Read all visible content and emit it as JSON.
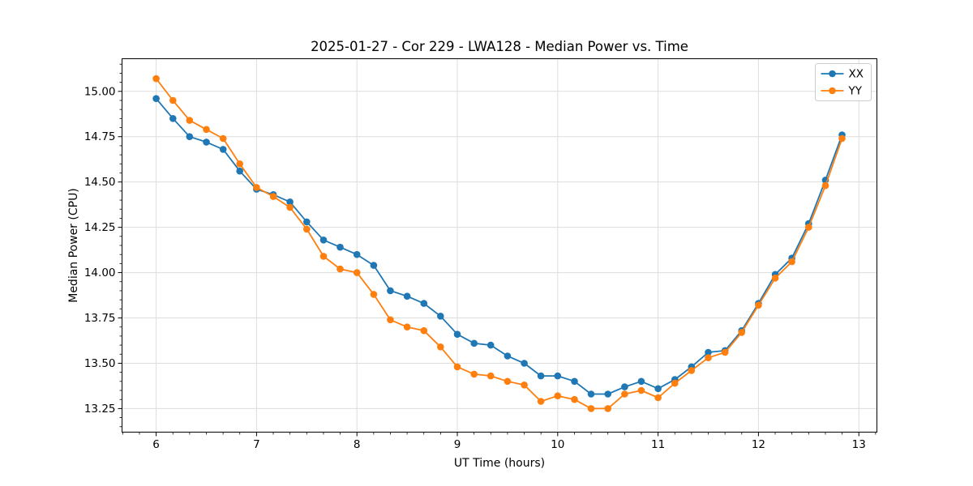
{
  "chart_data": {
    "type": "line",
    "title": "2025-01-27 - Cor 229 - LWA128 - Median Power vs. Time",
    "xlabel": "UT Time (hours)",
    "ylabel": "Median Power (CPU)",
    "xlim": [
      5.66,
      13.18
    ],
    "ylim": [
      13.12,
      15.18
    ],
    "x_major_ticks": [
      6,
      7,
      8,
      9,
      10,
      11,
      12,
      13
    ],
    "y_major_ticks": [
      13.25,
      13.5,
      13.75,
      14.0,
      14.25,
      14.5,
      14.75,
      15.0
    ],
    "x_minor_step": 0.166667,
    "y_minor_step": 0.05,
    "grid": "major",
    "grid_color": "#dddddd",
    "legend_position": "upper right",
    "x": [
      6.0,
      6.167,
      6.333,
      6.5,
      6.667,
      6.833,
      7.0,
      7.167,
      7.333,
      7.5,
      7.667,
      7.833,
      8.0,
      8.167,
      8.333,
      8.5,
      8.667,
      8.833,
      9.0,
      9.167,
      9.333,
      9.5,
      9.667,
      9.833,
      10.0,
      10.167,
      10.333,
      10.5,
      10.667,
      10.833,
      11.0,
      11.167,
      11.333,
      11.5,
      11.667,
      11.833,
      12.0,
      12.167,
      12.333,
      12.5,
      12.667,
      12.833
    ],
    "series": [
      {
        "name": "XX",
        "color": "#1f77b4",
        "values": [
          14.96,
          14.85,
          14.75,
          14.72,
          14.68,
          14.56,
          14.46,
          14.43,
          14.39,
          14.28,
          14.18,
          14.14,
          14.1,
          14.04,
          13.9,
          13.87,
          13.83,
          13.76,
          13.66,
          13.61,
          13.6,
          13.54,
          13.5,
          13.43,
          13.43,
          13.4,
          13.33,
          13.33,
          13.37,
          13.4,
          13.36,
          13.41,
          13.48,
          13.56,
          13.57,
          13.68,
          13.83,
          13.99,
          14.08,
          14.27,
          14.51,
          14.76
        ]
      },
      {
        "name": "YY",
        "color": "#ff7f0e",
        "values": [
          15.07,
          14.95,
          14.84,
          14.79,
          14.74,
          14.6,
          14.47,
          14.42,
          14.36,
          14.24,
          14.09,
          14.02,
          14.0,
          13.88,
          13.74,
          13.7,
          13.68,
          13.59,
          13.48,
          13.44,
          13.43,
          13.4,
          13.38,
          13.29,
          13.32,
          13.3,
          13.25,
          13.25,
          13.33,
          13.35,
          13.31,
          13.39,
          13.46,
          13.53,
          13.56,
          13.67,
          13.82,
          13.97,
          14.06,
          14.25,
          14.48,
          14.74
        ]
      }
    ]
  }
}
